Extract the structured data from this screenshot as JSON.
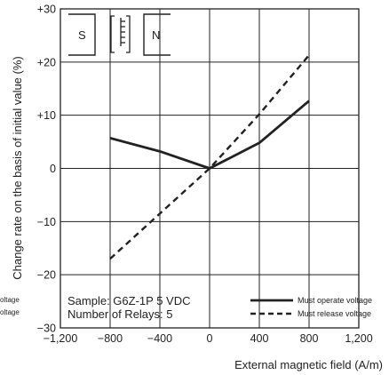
{
  "chart_data": {
    "type": "line",
    "title": "",
    "xlabel": "External magnetic field (A/m)",
    "ylabel": "Change rate on the basis of initial value (%)",
    "xlim": [
      -1200,
      1200
    ],
    "ylim": [
      -30,
      30
    ],
    "x_ticks": [
      -1200,
      -800,
      -400,
      0,
      400,
      800,
      1200
    ],
    "x_tick_labels": [
      "−1,200",
      "−800",
      "−400",
      "0",
      "400",
      "800",
      "1,200"
    ],
    "y_ticks": [
      -30,
      -20,
      -10,
      0,
      10,
      20,
      30
    ],
    "y_tick_labels": [
      "−30",
      "−20",
      "−10",
      "0",
      "+10",
      "+20",
      "+30"
    ],
    "grid": true,
    "legend_position": "bottom-right",
    "series": [
      {
        "name": "Must operate voltage",
        "style": "solid",
        "x": [
          -800,
          -400,
          0,
          400,
          800
        ],
        "y": [
          5.7,
          3.2,
          0,
          4.8,
          12.7
        ]
      },
      {
        "name": "Must release voltage",
        "style": "dashed",
        "x": [
          -800,
          -400,
          0,
          400,
          800
        ],
        "y": [
          -17,
          -8.5,
          0,
          10.2,
          21.3
        ]
      }
    ],
    "annotations": {
      "sample_line1": "Sample: G6Z-1P  5 VDC",
      "sample_line2": "Number of Relays: 5",
      "magnet_s": "S",
      "magnet_n": "N",
      "clipped_left_1": "oltage",
      "clipped_left_2": "oltage"
    }
  }
}
